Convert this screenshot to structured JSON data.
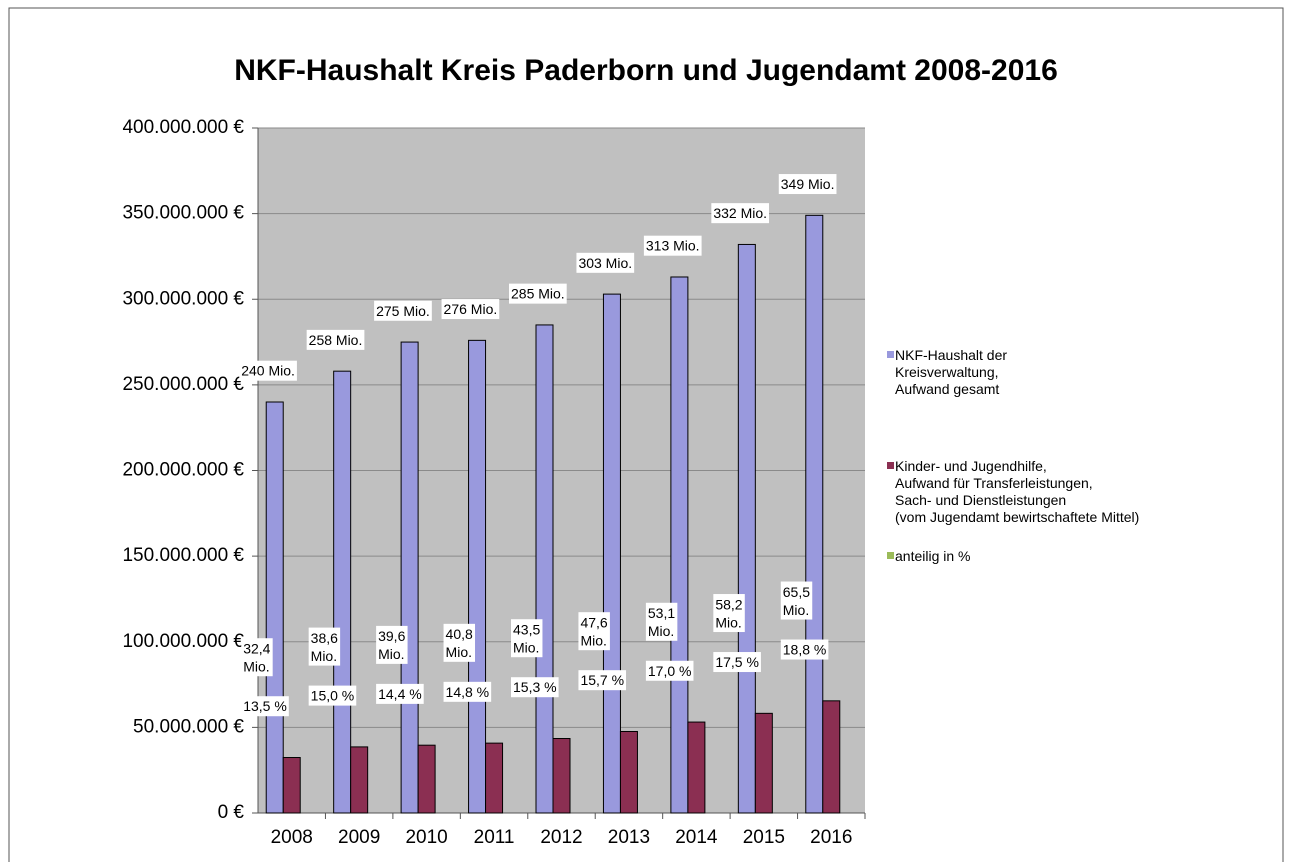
{
  "chart_data": {
    "type": "bar",
    "title": "NKF-Haushalt Kreis Paderborn und Jugendamt 2008-2016",
    "categories": [
      "2008",
      "2009",
      "2010",
      "2011",
      "2012",
      "2013",
      "2014",
      "2015",
      "2016"
    ],
    "series": [
      {
        "name": "NKF-Haushalt der\nKreisverwaltung,\nAufwand gesamt",
        "color": "#9999dd",
        "values": [
          240000000,
          258000000,
          275000000,
          276000000,
          285000000,
          303000000,
          313000000,
          332000000,
          349000000
        ],
        "value_labels": [
          "240 Mio.",
          "258 Mio.",
          "275 Mio.",
          "276 Mio.",
          "285 Mio.",
          "303 Mio.",
          "313 Mio.",
          "332 Mio.",
          "349 Mio."
        ]
      },
      {
        "name": "Kinder- und Jugendhilfe,\nAufwand  für Transferleistungen,\nSach- und Dienstleistungen\n(vom Jugendamt bewirtschaftete Mittel)",
        "color": "#8b2f52",
        "values": [
          32400000,
          38600000,
          39600000,
          40800000,
          43500000,
          47600000,
          53100000,
          58200000,
          65500000
        ],
        "value_labels": [
          "32,4 Mio.",
          "38,6 Mio.",
          "39,6 Mio.",
          "40,8 Mio.",
          "43,5 Mio.",
          "47,6 Mio.",
          "53,1 Mio.",
          "58,2 Mio.",
          "65,5 Mio."
        ]
      },
      {
        "name": "anteilig in %",
        "color": "#9bbb59",
        "values": [
          13.5,
          15.0,
          14.4,
          14.8,
          15.3,
          15.7,
          17.0,
          17.5,
          18.8
        ],
        "value_labels": [
          "13,5  %",
          "15,0 %",
          "14,4 %",
          "14,8 %",
          "15,3 %",
          "15,7 %",
          "17,0 %",
          "17,5 %",
          "18,8 %"
        ]
      }
    ],
    "ylim": [
      0,
      400000000
    ],
    "yticks": [
      {
        "value": 0,
        "label": "0 €"
      },
      {
        "value": 50000000,
        "label": "50.000.000 €"
      },
      {
        "value": 100000000,
        "label": "100.000.000 €"
      },
      {
        "value": 150000000,
        "label": "150.000.000 €"
      },
      {
        "value": 200000000,
        "label": "200.000.000 €"
      },
      {
        "value": 250000000,
        "label": "250.000.000 €"
      },
      {
        "value": 300000000,
        "label": "300.000.000 €"
      },
      {
        "value": 350000000,
        "label": "350.000.000 €"
      },
      {
        "value": 400000000,
        "label": "400.000.000 €"
      }
    ],
    "grid": true
  }
}
